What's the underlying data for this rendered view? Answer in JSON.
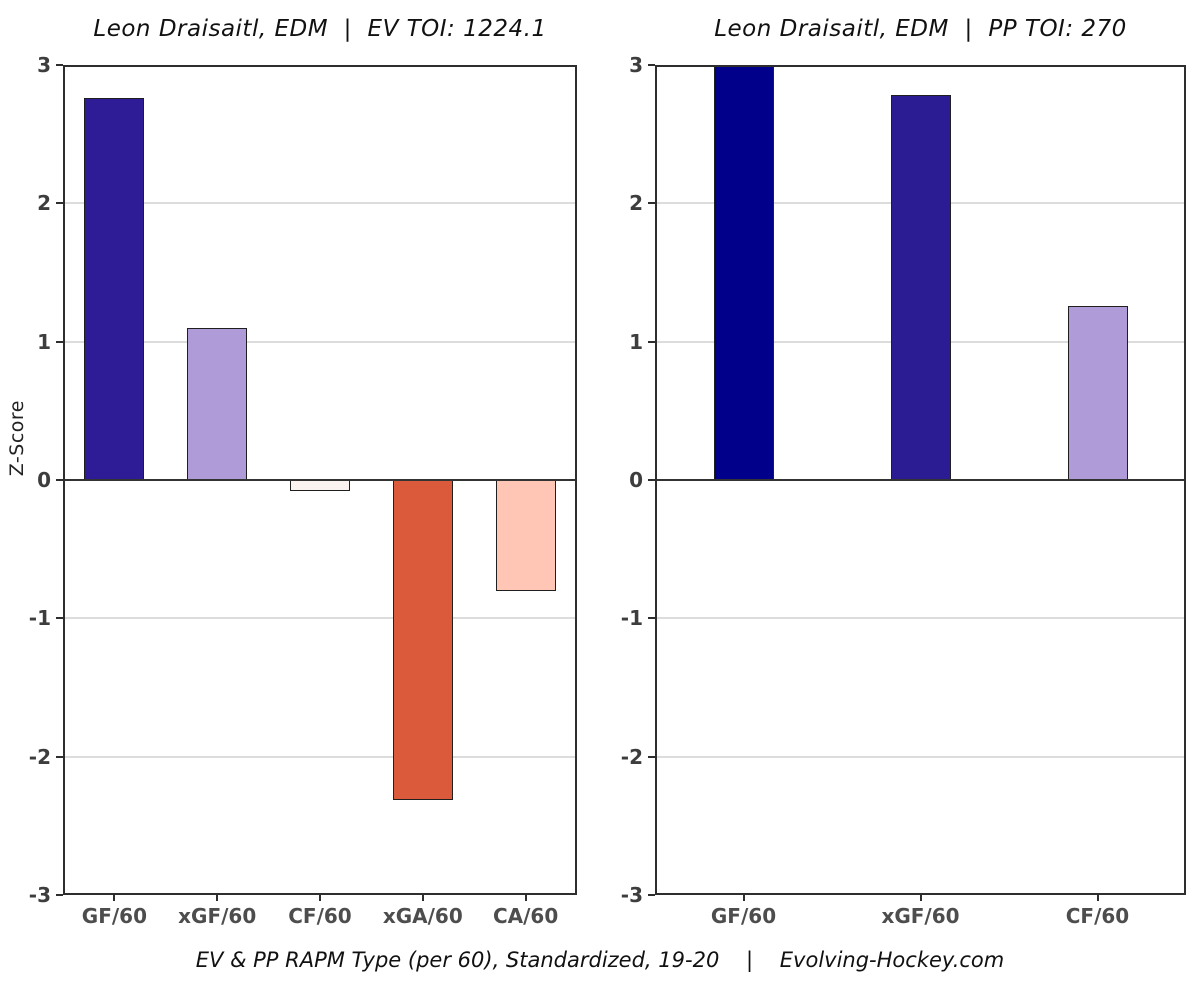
{
  "caption": "EV & PP RAPM Type (per 60), Standardized, 19-20    |    Evolving-Hockey.com",
  "y_axis_title": "Z-Score",
  "chart_data": [
    {
      "type": "bar",
      "title": "Leon Draisaitl, EDM  |  EV TOI: 1224.1",
      "player": "Leon Draisaitl",
      "team": "EDM",
      "strength": "EV",
      "toi": 1224.1,
      "categories": [
        "GF/60",
        "xGF/60",
        "CF/60",
        "xGA/60",
        "CA/60"
      ],
      "values": [
        2.76,
        1.1,
        -0.08,
        -2.31,
        -0.8
      ],
      "bar_colors": [
        "#2E1B96",
        "#AF9BD8",
        "#FBF3F0",
        "#DB5A3C",
        "#FFC6B5"
      ],
      "ylabel": "Z-Score",
      "ylim": [
        -3,
        3
      ],
      "yticks": [
        3,
        2,
        1,
        0,
        -1,
        -2,
        -3
      ],
      "grid": true,
      "legend": "none"
    },
    {
      "type": "bar",
      "title": "Leon Draisaitl, EDM  |  PP TOI: 270",
      "player": "Leon Draisaitl",
      "team": "EDM",
      "strength": "PP",
      "toi": 270,
      "categories": [
        "GF/60",
        "xGF/60",
        "CF/60"
      ],
      "values": [
        3.0,
        2.78,
        1.26
      ],
      "bar_colors": [
        "#00008B",
        "#2B1C94",
        "#AF9BD8"
      ],
      "ylabel": "",
      "ylim": [
        -3,
        3
      ],
      "yticks": [
        3,
        2,
        1,
        0,
        -1,
        -2,
        -3
      ],
      "grid": true,
      "legend": "none"
    }
  ],
  "colors": {
    "positive_strong": "#00008B",
    "positive_mid": "#2E1B96",
    "positive_weak": "#AF9BD8",
    "near_zero": "#FBF3F0",
    "negative_weak": "#FFC6B5",
    "negative_strong": "#DB5A3C",
    "zero_line": "#333333",
    "gridline": "#dcdcdc",
    "panel_border": "#2e2e2e",
    "tick_text": "#3d3d3d"
  }
}
